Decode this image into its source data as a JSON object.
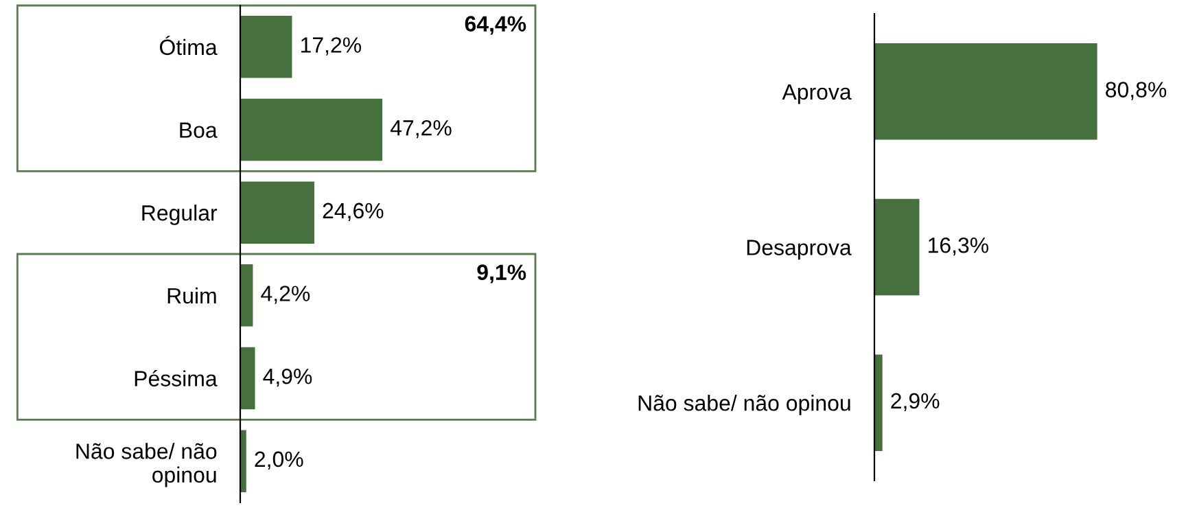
{
  "chart_data": [
    {
      "type": "bar",
      "orientation": "horizontal",
      "categories": [
        "Ótima",
        "Boa",
        "Regular",
        "Ruim",
        "Péssima",
        "Não sabe/ não\nopinou"
      ],
      "values": [
        17.2,
        47.2,
        24.6,
        4.2,
        4.9,
        2.0
      ],
      "color": "#46703e",
      "value_labels": [
        "17,2%",
        "47,2%",
        "24,6%",
        "4,2%",
        "4,9%",
        "2,0%"
      ],
      "annotations": [
        "64,4%",
        "9,1%"
      ],
      "grid": false,
      "legend": false,
      "tick_labels": "y"
    },
    {
      "type": "bar",
      "orientation": "horizontal",
      "categories": [
        "Aprova",
        "Desaprova",
        "Não sabe/ não opinou"
      ],
      "values": [
        80.8,
        16.3,
        2.9
      ],
      "color": "#46703e",
      "value_labels": [
        "80,8%",
        "16,3%",
        "2,9%"
      ],
      "grid": false,
      "legend": false,
      "tick_labels": "y"
    }
  ]
}
